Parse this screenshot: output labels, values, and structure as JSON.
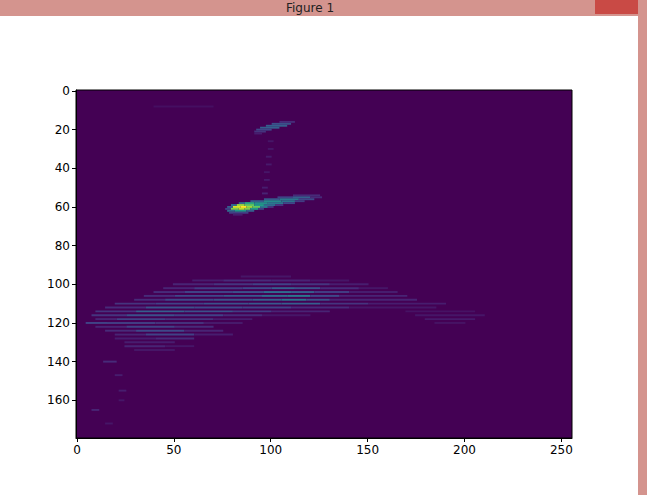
{
  "chart_data": {
    "type": "heatmap",
    "title": "Figure 1",
    "xlim": [
      -0.5,
      255.5
    ],
    "xticks": [
      0,
      50,
      100,
      150,
      200,
      250
    ],
    "ylim": [
      179.5,
      -0.5
    ],
    "yticks": [
      0,
      20,
      40,
      60,
      80,
      100,
      120,
      140,
      160
    ],
    "grid": false,
    "value_range": [
      0,
      1
    ],
    "cell_runs": [
      [
        8,
        40,
        70,
        0.04
      ],
      [
        16,
        105,
        112,
        0.12
      ],
      [
        17,
        101,
        110,
        0.25
      ],
      [
        18,
        98,
        108,
        0.3
      ],
      [
        19,
        95,
        104,
        0.3
      ],
      [
        20,
        93,
        100,
        0.22
      ],
      [
        21,
        92,
        97,
        0.15
      ],
      [
        22,
        92,
        95,
        0.08
      ],
      [
        26,
        99,
        101,
        0.06
      ],
      [
        30,
        99,
        101,
        0.06
      ],
      [
        34,
        98,
        100,
        0.07
      ],
      [
        38,
        98,
        100,
        0.07
      ],
      [
        42,
        97,
        99,
        0.06
      ],
      [
        46,
        97,
        99,
        0.07
      ],
      [
        50,
        96,
        98,
        0.08
      ],
      [
        53,
        96,
        98,
        0.1
      ],
      [
        54,
        112,
        125,
        0.12
      ],
      [
        55,
        104,
        111,
        0.2
      ],
      [
        55,
        112,
        120,
        0.3
      ],
      [
        55,
        121,
        126,
        0.12
      ],
      [
        56,
        97,
        104,
        0.28
      ],
      [
        56,
        105,
        114,
        0.4
      ],
      [
        56,
        115,
        122,
        0.22
      ],
      [
        57,
        90,
        96,
        0.3
      ],
      [
        57,
        97,
        105,
        0.48
      ],
      [
        57,
        106,
        112,
        0.38
      ],
      [
        57,
        113,
        117,
        0.18
      ],
      [
        58,
        84,
        86,
        0.35
      ],
      [
        58,
        87,
        91,
        0.6
      ],
      [
        58,
        92,
        98,
        0.5
      ],
      [
        58,
        99,
        106,
        0.4
      ],
      [
        58,
        107,
        112,
        0.22
      ],
      [
        59,
        80,
        82,
        0.35
      ],
      [
        59,
        83,
        86,
        0.85
      ],
      [
        59,
        87,
        91,
        0.75
      ],
      [
        59,
        92,
        96,
        0.55
      ],
      [
        59,
        97,
        102,
        0.35
      ],
      [
        59,
        103,
        106,
        0.15
      ],
      [
        60,
        78,
        80,
        0.3
      ],
      [
        60,
        81,
        84,
        0.95
      ],
      [
        60,
        85,
        87,
        1.0
      ],
      [
        60,
        88,
        90,
        0.85
      ],
      [
        60,
        91,
        94,
        0.75
      ],
      [
        60,
        95,
        98,
        0.4
      ],
      [
        60,
        99,
        101,
        0.15
      ],
      [
        61,
        77,
        79,
        0.2
      ],
      [
        61,
        80,
        83,
        0.8
      ],
      [
        61,
        84,
        86,
        0.9
      ],
      [
        61,
        87,
        89,
        0.8
      ],
      [
        61,
        90,
        93,
        0.55
      ],
      [
        61,
        94,
        96,
        0.2
      ],
      [
        62,
        78,
        81,
        0.35
      ],
      [
        62,
        82,
        87,
        0.55
      ],
      [
        62,
        88,
        91,
        0.3
      ],
      [
        63,
        79,
        88,
        0.2
      ],
      [
        64,
        81,
        85,
        0.08
      ],
      [
        96,
        85,
        110,
        0.06
      ],
      [
        98,
        60,
        75,
        0.08
      ],
      [
        98,
        76,
        100,
        0.12
      ],
      [
        98,
        101,
        120,
        0.1
      ],
      [
        98,
        121,
        140,
        0.06
      ],
      [
        100,
        50,
        70,
        0.1
      ],
      [
        100,
        71,
        90,
        0.15
      ],
      [
        100,
        91,
        110,
        0.2
      ],
      [
        100,
        111,
        130,
        0.15
      ],
      [
        100,
        131,
        150,
        0.08
      ],
      [
        102,
        45,
        60,
        0.1
      ],
      [
        102,
        61,
        85,
        0.18
      ],
      [
        102,
        86,
        100,
        0.22
      ],
      [
        102,
        101,
        112,
        0.3
      ],
      [
        102,
        113,
        125,
        0.25
      ],
      [
        102,
        126,
        145,
        0.12
      ],
      [
        102,
        146,
        160,
        0.06
      ],
      [
        104,
        40,
        55,
        0.12
      ],
      [
        104,
        56,
        80,
        0.2
      ],
      [
        104,
        81,
        96,
        0.25
      ],
      [
        104,
        97,
        110,
        0.35
      ],
      [
        104,
        111,
        122,
        0.3
      ],
      [
        104,
        123,
        140,
        0.18
      ],
      [
        104,
        141,
        165,
        0.08
      ],
      [
        106,
        35,
        50,
        0.12
      ],
      [
        106,
        51,
        75,
        0.22
      ],
      [
        106,
        76,
        95,
        0.28
      ],
      [
        106,
        96,
        108,
        0.35
      ],
      [
        106,
        109,
        120,
        0.4
      ],
      [
        106,
        121,
        135,
        0.22
      ],
      [
        106,
        136,
        170,
        0.1
      ],
      [
        108,
        30,
        45,
        0.12
      ],
      [
        108,
        46,
        70,
        0.22
      ],
      [
        108,
        71,
        90,
        0.25
      ],
      [
        108,
        91,
        105,
        0.3
      ],
      [
        108,
        106,
        118,
        0.38
      ],
      [
        108,
        119,
        130,
        0.25
      ],
      [
        108,
        131,
        175,
        0.1
      ],
      [
        110,
        20,
        40,
        0.15
      ],
      [
        110,
        41,
        65,
        0.2
      ],
      [
        110,
        66,
        88,
        0.25
      ],
      [
        110,
        89,
        105,
        0.28
      ],
      [
        110,
        106,
        125,
        0.3
      ],
      [
        110,
        126,
        150,
        0.15
      ],
      [
        110,
        151,
        190,
        0.08
      ],
      [
        112,
        15,
        35,
        0.12
      ],
      [
        112,
        36,
        60,
        0.25
      ],
      [
        112,
        61,
        85,
        0.22
      ],
      [
        112,
        86,
        110,
        0.2
      ],
      [
        112,
        111,
        140,
        0.12
      ],
      [
        112,
        141,
        185,
        0.06
      ],
      [
        114,
        10,
        30,
        0.15
      ],
      [
        114,
        31,
        55,
        0.3
      ],
      [
        114,
        56,
        80,
        0.25
      ],
      [
        114,
        81,
        100,
        0.18
      ],
      [
        114,
        101,
        130,
        0.1
      ],
      [
        114,
        170,
        205,
        0.05
      ],
      [
        116,
        8,
        25,
        0.15
      ],
      [
        116,
        26,
        50,
        0.25
      ],
      [
        116,
        51,
        75,
        0.2
      ],
      [
        116,
        76,
        95,
        0.12
      ],
      [
        116,
        96,
        120,
        0.06
      ],
      [
        116,
        175,
        210,
        0.06
      ],
      [
        118,
        10,
        20,
        0.1
      ],
      [
        118,
        21,
        45,
        0.2
      ],
      [
        118,
        46,
        70,
        0.15
      ],
      [
        118,
        71,
        90,
        0.08
      ],
      [
        118,
        180,
        205,
        0.07
      ],
      [
        120,
        5,
        15,
        0.2
      ],
      [
        120,
        16,
        40,
        0.18
      ],
      [
        120,
        41,
        65,
        0.14
      ],
      [
        120,
        66,
        85,
        0.07
      ],
      [
        120,
        185,
        200,
        0.05
      ],
      [
        122,
        10,
        25,
        0.1
      ],
      [
        122,
        26,
        50,
        0.2
      ],
      [
        122,
        51,
        70,
        0.12
      ],
      [
        124,
        15,
        30,
        0.12
      ],
      [
        124,
        31,
        55,
        0.22
      ],
      [
        124,
        56,
        75,
        0.1
      ],
      [
        126,
        20,
        35,
        0.1
      ],
      [
        126,
        36,
        60,
        0.2
      ],
      [
        126,
        61,
        80,
        0.08
      ],
      [
        128,
        20,
        40,
        0.08
      ],
      [
        128,
        41,
        60,
        0.12
      ],
      [
        130,
        25,
        50,
        0.08
      ],
      [
        132,
        25,
        45,
        0.1
      ],
      [
        132,
        46,
        60,
        0.06
      ],
      [
        134,
        30,
        50,
        0.06
      ],
      [
        140,
        14,
        20,
        0.12
      ],
      [
        147,
        20,
        23,
        0.08
      ],
      [
        155,
        22,
        25,
        0.08
      ],
      [
        160,
        22,
        24,
        0.06
      ],
      [
        165,
        8,
        11,
        0.1
      ],
      [
        172,
        15,
        18,
        0.06
      ]
    ]
  }
}
